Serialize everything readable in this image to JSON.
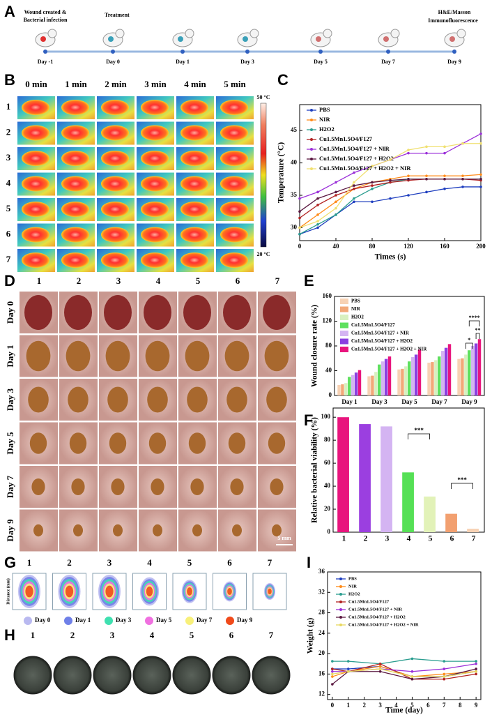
{
  "panel_labels": [
    "A",
    "B",
    "C",
    "D",
    "E",
    "F",
    "G",
    "H",
    "I"
  ],
  "timeline": {
    "start_label": [
      "Wound created &",
      "Bacterial infection"
    ],
    "treatment": "Treatment",
    "end_label": [
      "H&E/Masson",
      "Immunofluorescence"
    ],
    "days": [
      "Day -1",
      "Day 0",
      "Day 1",
      "Day 3",
      "Day 5",
      "Day 7",
      "Day 9"
    ]
  },
  "thermal": {
    "columns": [
      "0 min",
      "1 min",
      "2 min",
      "3 min",
      "4 min",
      "5 min"
    ],
    "rows": [
      "1",
      "2",
      "3",
      "4",
      "5",
      "6",
      "7"
    ],
    "scale_max": "50 °C",
    "scale_min": "20 °C"
  },
  "wound_photos": {
    "columns": [
      "1",
      "2",
      "3",
      "4",
      "5",
      "6",
      "7"
    ],
    "rows": [
      "Day 0",
      "Day 1",
      "Day 3",
      "Day 5",
      "Day 7",
      "Day 9"
    ],
    "scale_bar": "5 mm"
  },
  "wound_traces": {
    "columns": [
      "1",
      "2",
      "3",
      "4",
      "5",
      "6",
      "7"
    ],
    "y_label": "Distance (mm)",
    "legend": [
      {
        "name": "Day 0",
        "color": "#b9b9f0"
      },
      {
        "name": "Day 1",
        "color": "#6f80e8"
      },
      {
        "name": "Day 3",
        "color": "#3fe0b0"
      },
      {
        "name": "Day 5",
        "color": "#f070e0"
      },
      {
        "name": "Day 7",
        "color": "#f8f07a"
      },
      {
        "name": "Day 9",
        "color": "#f04a1a"
      }
    ]
  },
  "plates": {
    "columns": [
      "1",
      "2",
      "3",
      "4",
      "5",
      "6",
      "7"
    ]
  },
  "chart_data": [
    {
      "type": "line",
      "x": [
        0,
        20,
        40,
        60,
        80,
        100,
        120,
        140,
        160,
        180,
        200
      ],
      "xlim": [
        0,
        200
      ],
      "xticks": [
        0,
        40,
        80,
        120,
        160,
        200
      ],
      "ylim": [
        28,
        49
      ],
      "yticks": [
        30,
        35,
        40,
        45
      ],
      "xlabel": "Times (s)",
      "ylabel": "Temperature (°C)",
      "series": [
        {
          "name": "PBS",
          "color": "#1f3fbf",
          "values": [
            29,
            30,
            32,
            34,
            34,
            34.5,
            35,
            35.5,
            36,
            36.3,
            36.3
          ]
        },
        {
          "name": "NIR",
          "color": "#ff8c1a",
          "values": [
            30,
            32,
            34,
            36,
            37,
            37.5,
            38,
            38,
            38,
            38,
            38.2
          ]
        },
        {
          "name": "H2O2",
          "color": "#2a9d8f",
          "values": [
            29,
            30.5,
            32,
            34.5,
            36,
            37,
            37.5,
            37.5,
            37.5,
            37.5,
            37.5
          ]
        },
        {
          "name": "Cu1.5Mn1.5O4/F127",
          "color": "#b22222",
          "values": [
            31.5,
            33.5,
            35,
            36,
            36.5,
            37,
            37.3,
            37.5,
            37.5,
            37.5,
            37.3
          ]
        },
        {
          "name": "Cu1.5Mn1.5O4/F127 + NIR",
          "color": "#9b30d9",
          "values": [
            34.5,
            35.5,
            37,
            38.5,
            39.5,
            40.5,
            41.5,
            41.5,
            41.5,
            43,
            44.5
          ]
        },
        {
          "name": "Cu1.5Mn1.5O4/F127 + H2O2",
          "color": "#5a1840",
          "values": [
            32.5,
            34.5,
            35.5,
            36.5,
            37,
            37.3,
            37.5,
            37.5,
            37.5,
            37.5,
            37.5
          ]
        },
        {
          "name": "Cu1.5Mn1.5O4/F127 + H2O2 + NIR",
          "color": "#f0e070",
          "values": [
            30,
            31,
            33,
            37,
            39.5,
            40.5,
            42,
            42.5,
            42.5,
            43,
            43
          ]
        }
      ]
    },
    {
      "type": "bar",
      "categories": [
        "Day 1",
        "Day 3",
        "Day 5",
        "Day 7",
        "Day 9"
      ],
      "ylim": [
        0,
        160
      ],
      "yticks": [
        0,
        40,
        80,
        120,
        160
      ],
      "ylabel": "Wound closure rate (%)",
      "series": [
        {
          "name": "PBS",
          "color": "#f7d2b4",
          "values": [
            17,
            31,
            42,
            53,
            59
          ]
        },
        {
          "name": "NIR",
          "color": "#f2a878",
          "values": [
            18,
            32,
            43,
            54,
            60
          ]
        },
        {
          "name": "H2O2",
          "color": "#d8f0c0",
          "values": [
            20,
            38,
            47,
            57,
            66
          ]
        },
        {
          "name": "Cu1.5Mn1.5O4/F127",
          "color": "#5ee05e",
          "values": [
            30,
            50,
            55,
            63,
            73
          ]
        },
        {
          "name": "Cu1.5Mn1.5O4/F127 + NIR",
          "color": "#d4b4f2",
          "values": [
            33,
            55,
            62,
            72,
            80
          ]
        },
        {
          "name": "Cu1.5Mn1.5O4/F127 + H2O2",
          "color": "#8b3fe0",
          "values": [
            37,
            59,
            66,
            77,
            84
          ]
        },
        {
          "name": "Cu1.5Mn1.5O4/F127 + H2O2 + NIR",
          "color": "#e8157d",
          "values": [
            41,
            63,
            74,
            83,
            91
          ]
        }
      ],
      "annotations": [
        "****",
        "**",
        "*"
      ]
    },
    {
      "type": "bar",
      "categories": [
        "1",
        "2",
        "3",
        "4",
        "5",
        "6",
        "7"
      ],
      "values": [
        100,
        94,
        92,
        52,
        31,
        16,
        3
      ],
      "colors": [
        "#e8157d",
        "#9b3fe0",
        "#d4b4f2",
        "#55e055",
        "#e2f2b8",
        "#f2a070",
        "#f7d2b4"
      ],
      "ylim": [
        0,
        108
      ],
      "yticks": [
        0,
        20,
        40,
        60,
        80,
        100
      ],
      "ylabel": "Relative bacterial viability (%)",
      "annotations": [
        "***",
        "***"
      ]
    },
    {
      "type": "line",
      "x": [
        0,
        1,
        3,
        5,
        7,
        9
      ],
      "xlim": [
        -0.3,
        9.3
      ],
      "xticks": [
        0,
        1,
        2,
        3,
        4,
        5,
        6,
        7,
        8,
        9
      ],
      "ylim": [
        11,
        36
      ],
      "yticks": [
        12,
        16,
        20,
        24,
        28,
        32,
        36
      ],
      "xlabel": "Time (day)",
      "ylabel": "Weight (g)",
      "series": [
        {
          "name": "PBS",
          "color": "#1f3fbf",
          "values": [
            17,
            17,
            17.5,
            15.5,
            15.5,
            16.5
          ]
        },
        {
          "name": "NIR",
          "color": "#ff8c1a",
          "values": [
            15.5,
            16.5,
            17.5,
            15.5,
            16,
            16.5
          ]
        },
        {
          "name": "H2O2",
          "color": "#2a9d8f",
          "values": [
            18.5,
            18.5,
            18,
            19,
            18.5,
            18.5
          ]
        },
        {
          "name": "Cu1.5Mn1.5O4/F127",
          "color": "#b22222",
          "values": [
            17,
            16.5,
            18,
            15,
            15,
            16
          ]
        },
        {
          "name": "Cu1.5Mn1.5O4/F127 + NIR",
          "color": "#9b30d9",
          "values": [
            16.5,
            16.5,
            17,
            16.5,
            17,
            18
          ]
        },
        {
          "name": "Cu1.5Mn1.5O4/F127 + H2O2",
          "color": "#5a1840",
          "values": [
            14,
            16.5,
            16.5,
            15,
            15.5,
            17
          ]
        },
        {
          "name": "Cu1.5Mn1.5O4/F127 + H2O2 + NIR",
          "color": "#e8d860",
          "values": [
            16,
            16.5,
            17,
            15.5,
            15.5,
            16.5
          ]
        }
      ]
    }
  ]
}
